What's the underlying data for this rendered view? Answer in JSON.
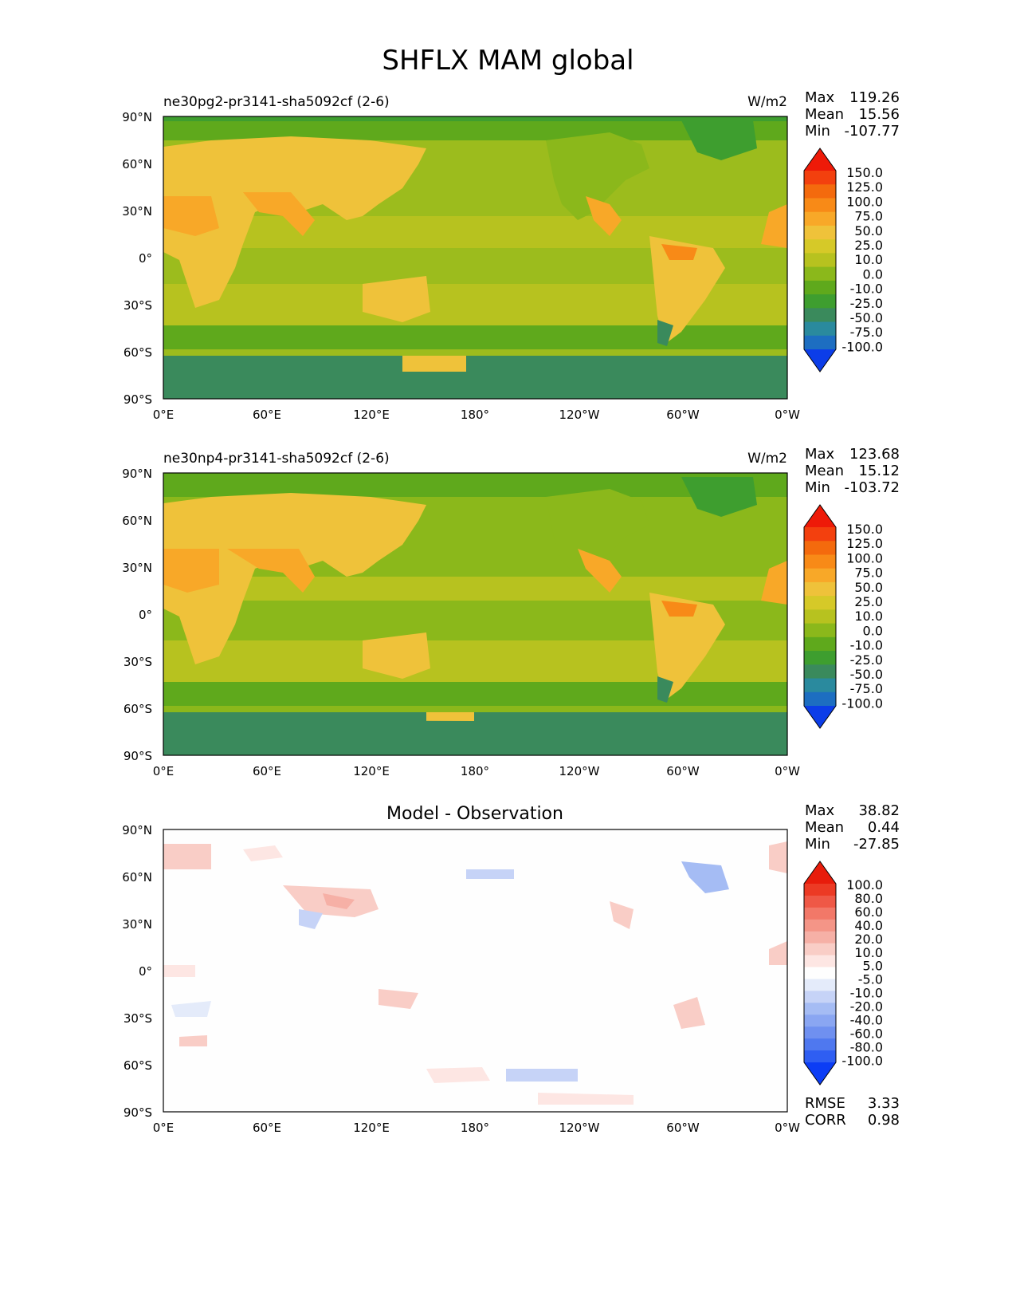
{
  "title": "SHFLX MAM global",
  "axes": {
    "lat_ticks": [
      "90°N",
      "60°N",
      "30°N",
      "0°",
      "30°S",
      "60°S",
      "90°S"
    ],
    "lon_ticks": [
      "0°E",
      "60°E",
      "120°E",
      "180°",
      "120°W",
      "60°W",
      "0°W"
    ]
  },
  "colors": {
    "model": [
      "#0c3de8",
      "#1d6ec1",
      "#2a8a9e",
      "#3a8a5c",
      "#3e9e2f",
      "#5fa91c",
      "#8bb81b",
      "#b7c21f",
      "#d6c928",
      "#efc23a",
      "#f8a828",
      "#f88a17",
      "#f46a0d",
      "#f3400e",
      "#ee1a08"
    ],
    "diff": [
      "#0c3df5",
      "#2f5ef2",
      "#4f78ef",
      "#6f90f0",
      "#8aa6f2",
      "#a5bcf4",
      "#c6d3f7",
      "#e4ebfa",
      "#fefefe",
      "#fde6e3",
      "#f9cdc6",
      "#f6b0a6",
      "#f49587",
      "#f27868",
      "#ef5846",
      "#ec3a24",
      "#e81c0b"
    ]
  },
  "panels": [
    {
      "id": "panel-1",
      "label": "ne30pg2-pr3141-sha5092cf (2-6)",
      "units": "W/m2",
      "stats": {
        "max_label": "Max",
        "max": "119.26",
        "mean_label": "Mean",
        "mean": "15.56",
        "min_label": "Min",
        "min": "-107.77"
      },
      "levels": [
        "150.0",
        "125.0",
        "100.0",
        "75.0",
        "50.0",
        "25.0",
        "10.0",
        "0.0",
        "-10.0",
        "-25.0",
        "-50.0",
        "-75.0",
        "-100.0"
      ]
    },
    {
      "id": "panel-2",
      "label": "ne30np4-pr3141-sha5092cf (2-6)",
      "units": "W/m2",
      "stats": {
        "max_label": "Max",
        "max": "123.68",
        "mean_label": "Mean",
        "mean": "15.12",
        "min_label": "Min",
        "min": "-103.72"
      },
      "levels": [
        "150.0",
        "125.0",
        "100.0",
        "75.0",
        "50.0",
        "25.0",
        "10.0",
        "0.0",
        "-10.0",
        "-25.0",
        "-50.0",
        "-75.0",
        "-100.0"
      ]
    },
    {
      "id": "panel-3",
      "title": "Model - Observation",
      "stats": {
        "max_label": "Max",
        "max": "38.82",
        "mean_label": "Mean",
        "mean": "0.44",
        "min_label": "Min",
        "min": "-27.85"
      },
      "levels": [
        "100.0",
        "80.0",
        "60.0",
        "40.0",
        "20.0",
        "10.0",
        "5.0",
        "-5.0",
        "-10.0",
        "-20.0",
        "-40.0",
        "-60.0",
        "-80.0",
        "-100.0"
      ],
      "rmse_label": "RMSE",
      "rmse": "3.33",
      "corr_label": "CORR",
      "corr": "0.98"
    }
  ]
}
